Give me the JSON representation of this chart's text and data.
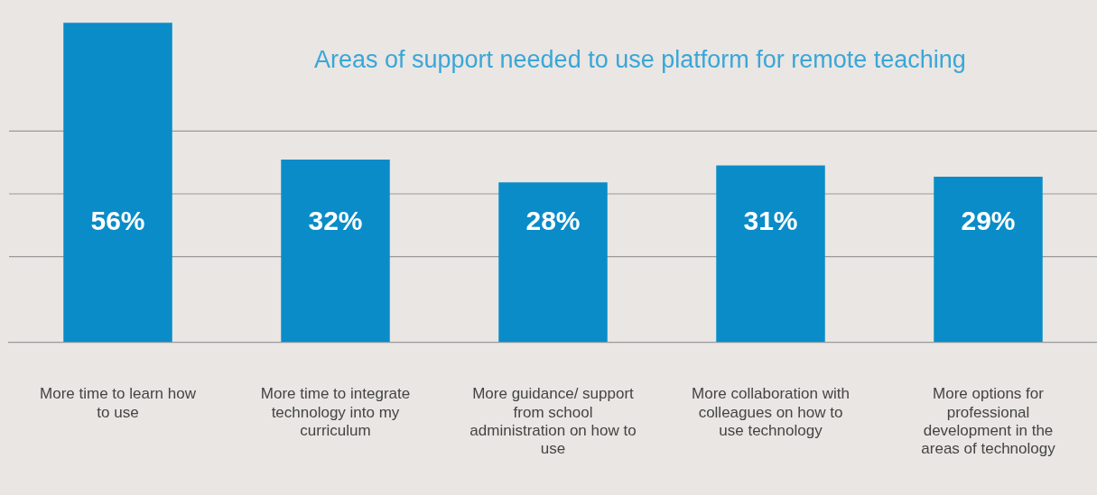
{
  "chart_data": {
    "type": "bar",
    "title": "Areas of support needed to use platform for remote teaching",
    "categories": [
      "More time to learn how to use",
      "More time to integrate technology into my curriculum",
      "More guidance/ support from school administration on how to use",
      "More collaboration with colleagues on how to use technology",
      "More options for professional development in the areas of technology"
    ],
    "values": [
      56,
      32,
      28,
      31,
      29
    ],
    "color": "#0a8cc8",
    "value_labels": [
      "56%",
      "32%",
      "28%",
      "31%",
      "29%"
    ],
    "ref_lines": [
      {
        "axis": "y",
        "value": 15,
        "color": "#9a9a9a"
      },
      {
        "axis": "y",
        "value": 26,
        "color": "#9a9a9a"
      },
      {
        "axis": "y",
        "value": 37,
        "color": "#9a9a9a"
      }
    ],
    "legend": false,
    "tick_labels": "x"
  }
}
